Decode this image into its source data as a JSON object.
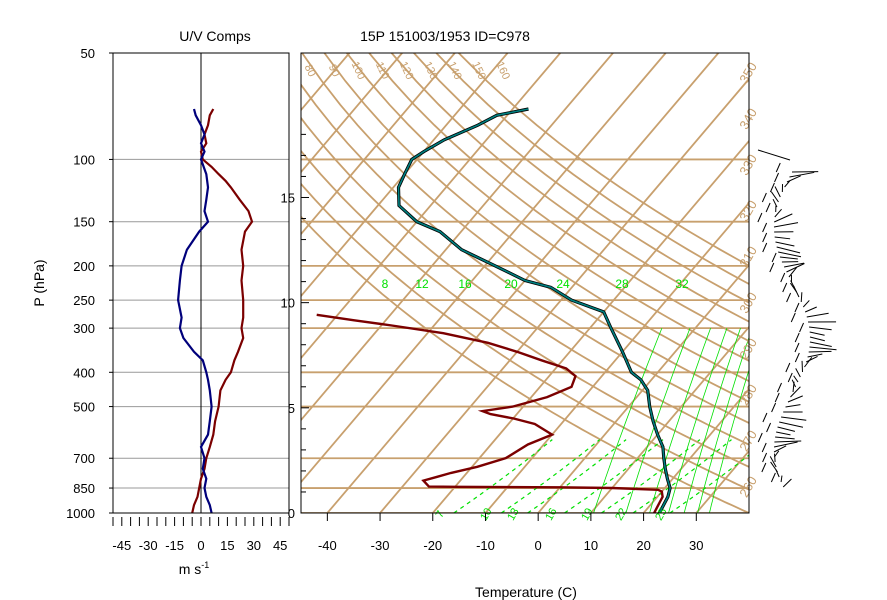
{
  "chart_data": [
    {
      "type": "line",
      "title": "U/V Comps",
      "xlabel": "m s",
      "xlabel_sup": "-1",
      "ylabel": "P (hPa)",
      "xlim": [
        -50,
        50
      ],
      "xticks": [
        "-45",
        "-30",
        "-15",
        "0",
        "15",
        "30",
        "45"
      ],
      "xtick_values": [
        -45,
        -30,
        -15,
        0,
        15,
        30,
        45
      ],
      "yticks": [
        "50",
        "100",
        "150",
        "200",
        "250",
        "300",
        "400",
        "500",
        "700",
        "850",
        "1000"
      ],
      "ytick_values": [
        50,
        100,
        150,
        200,
        250,
        300,
        400,
        500,
        700,
        850,
        1000
      ],
      "ylim": [
        1000,
        50
      ],
      "yscale": "log",
      "grid_pressures": [
        100,
        150,
        200,
        250,
        300,
        400,
        500,
        700,
        850,
        1000
      ],
      "series": [
        {
          "key": "u",
          "color": "#7b0000",
          "points": [
            [
              -5,
              1000
            ],
            [
              -4,
              950
            ],
            [
              -2,
              900
            ],
            [
              -1,
              850
            ],
            [
              0,
              800
            ],
            [
              2,
              750
            ],
            [
              3,
              700
            ],
            [
              5,
              650
            ],
            [
              7,
              600
            ],
            [
              8,
              550
            ],
            [
              10,
              500
            ],
            [
              11,
              450
            ],
            [
              14,
              420
            ],
            [
              17,
              400
            ],
            [
              19,
              370
            ],
            [
              21,
              350
            ],
            [
              24,
              320
            ],
            [
              23,
              300
            ],
            [
              24,
              280
            ],
            [
              24,
              250
            ],
            [
              23,
              220
            ],
            [
              24,
              200
            ],
            [
              23,
              180
            ],
            [
              25,
              160
            ],
            [
              29,
              150
            ],
            [
              27,
              140
            ],
            [
              22,
              130
            ],
            [
              17,
              120
            ],
            [
              14,
              115
            ],
            [
              10,
              110
            ],
            [
              6,
              105
            ],
            [
              1,
              100
            ],
            [
              0,
              95
            ],
            [
              3,
              90
            ],
            [
              2,
              85
            ],
            [
              4,
              80
            ],
            [
              5,
              75
            ],
            [
              7,
              72
            ]
          ]
        },
        {
          "key": "v",
          "color": "#00007b",
          "points": [
            [
              6,
              1000
            ],
            [
              5,
              950
            ],
            [
              3,
              900
            ],
            [
              2,
              850
            ],
            [
              3,
              800
            ],
            [
              1,
              750
            ],
            [
              2,
              700
            ],
            [
              0,
              650
            ],
            [
              4,
              600
            ],
            [
              5,
              550
            ],
            [
              6,
              500
            ],
            [
              5,
              450
            ],
            [
              4,
              420
            ],
            [
              3,
              400
            ],
            [
              1,
              370
            ],
            [
              -4,
              350
            ],
            [
              -10,
              320
            ],
            [
              -12,
              300
            ],
            [
              -11,
              280
            ],
            [
              -13,
              250
            ],
            [
              -12,
              220
            ],
            [
              -11,
              200
            ],
            [
              -8,
              180
            ],
            [
              -1,
              160
            ],
            [
              4,
              150
            ],
            [
              2,
              140
            ],
            [
              3,
              130
            ],
            [
              4,
              120
            ],
            [
              3,
              110
            ],
            [
              0,
              100
            ],
            [
              2,
              95
            ],
            [
              0,
              90
            ],
            [
              2,
              85
            ],
            [
              0,
              80
            ],
            [
              -3,
              75
            ],
            [
              -4,
              72
            ]
          ]
        }
      ]
    },
    {
      "type": "line",
      "title": "15P 151003/1953 ID=C978",
      "xlabel": "Temperature (C)",
      "xlim": [
        -45,
        40
      ],
      "xticks": [
        "-40",
        "-30",
        "-20",
        "-10",
        "0",
        "10",
        "20",
        "30"
      ],
      "xtick_values": [
        -40,
        -30,
        -20,
        -10,
        0,
        10,
        20,
        30
      ],
      "height_ticks": [
        "0",
        "5",
        "10",
        "15"
      ],
      "height_tick_values_km": [
        0,
        5,
        10,
        15
      ],
      "isobars_hpa": [
        100,
        150,
        200,
        250,
        300,
        400,
        500,
        700,
        850,
        1000
      ],
      "theta_labels": [
        "40",
        "50",
        "60",
        "70",
        "80",
        "90",
        "100",
        "110",
        "120",
        "130",
        "140",
        "150",
        "160"
      ],
      "thetae_right_labels": [
        "350",
        "340",
        "330",
        "320",
        "310",
        "300",
        "290",
        "280",
        "270",
        "260"
      ],
      "mixing_ratio_labels": [
        "8",
        "12",
        "16",
        "20",
        "24",
        "28",
        "32"
      ],
      "mixing_ratio_values": [
        8,
        12,
        16,
        20,
        24,
        28,
        32
      ],
      "bottom_labels": [
        "7",
        "10",
        "13",
        "16",
        "19",
        "22",
        "25"
      ],
      "colors": {
        "grid": "#c8a06e",
        "temperature": "#008080",
        "dewpoint": "#7b0000",
        "moist": "#00e000"
      },
      "series": [
        {
          "name": "Temperature",
          "key": "temperature",
          "points": [
            [
              23,
              1000
            ],
            [
              22,
              900
            ],
            [
              21,
              850
            ],
            [
              19,
              800
            ],
            [
              17,
              750
            ],
            [
              15,
              700
            ],
            [
              13,
              650
            ],
            [
              10,
              600
            ],
            [
              7,
              550
            ],
            [
              4,
              500
            ],
            [
              1,
              450
            ],
            [
              -2,
              420
            ],
            [
              -5,
              400
            ],
            [
              -10,
              350
            ],
            [
              -16,
              300
            ],
            [
              -20,
              270
            ],
            [
              -28,
              250
            ],
            [
              -34,
              230
            ],
            [
              -40,
              220
            ],
            [
              -48,
              200
            ],
            [
              -57,
              180
            ],
            [
              -64,
              160
            ],
            [
              -70,
              150
            ],
            [
              -76,
              135
            ],
            [
              -79,
              120
            ],
            [
              -80,
              110
            ],
            [
              -81,
              100
            ],
            [
              -80,
              95
            ],
            [
              -78,
              88
            ],
            [
              -74,
              80
            ],
            [
              -72,
              75
            ],
            [
              -67,
              72
            ]
          ]
        },
        {
          "name": "Dewpoint",
          "key": "dewpoint",
          "points": [
            [
              22,
              1000
            ],
            [
              21,
              900
            ],
            [
              20,
              870
            ],
            [
              19,
              860
            ],
            [
              10,
              850
            ],
            [
              0,
              846
            ],
            [
              -10,
              845
            ],
            [
              -20,
              843
            ],
            [
              -25,
              842
            ],
            [
              -27,
              810
            ],
            [
              -25,
              790
            ],
            [
              -23,
              770
            ],
            [
              -19,
              740
            ],
            [
              -15,
              700
            ],
            [
              -13,
              640
            ],
            [
              -10,
              600
            ],
            [
              -15,
              560
            ],
            [
              -20,
              540
            ],
            [
              -25,
              525
            ],
            [
              -27,
              515
            ],
            [
              -22,
              500
            ],
            [
              -17,
              470
            ],
            [
              -14,
              440
            ],
            [
              -15,
              410
            ],
            [
              -18,
              390
            ],
            [
              -24,
              370
            ],
            [
              -30,
              350
            ],
            [
              -37,
              330
            ],
            [
              -47,
              310
            ],
            [
              -58,
              295
            ],
            [
              -66,
              285
            ],
            [
              -74,
              275
            ]
          ]
        }
      ]
    }
  ]
}
